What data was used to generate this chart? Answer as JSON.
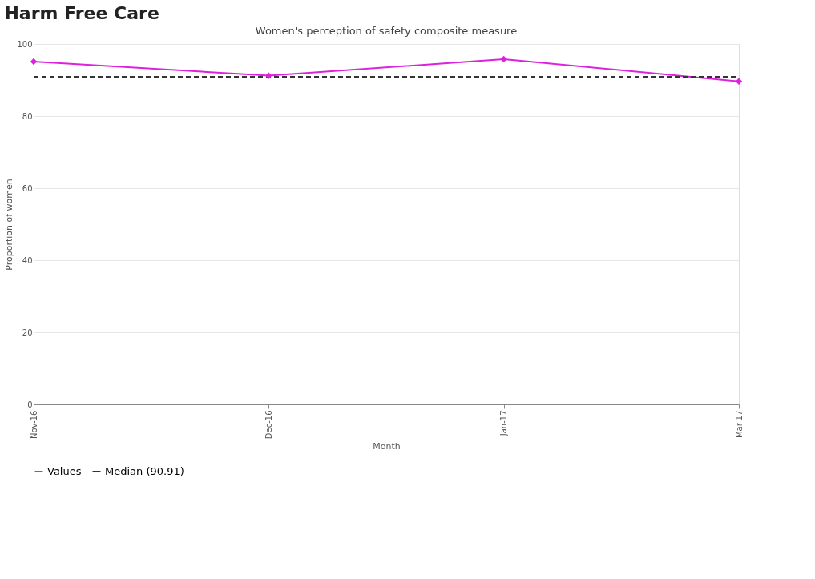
{
  "chart_data": {
    "type": "line",
    "title": "Harm Free Care",
    "subtitle": "Women's perception of safety composite measure",
    "xlabel": "Month",
    "ylabel": "Proportion of women",
    "categories": [
      "Nov-16",
      "Dec-16",
      "Jan-17",
      "Mar-17"
    ],
    "series": [
      {
        "name": "Values",
        "color": "#dd22dd",
        "values": [
          95.1,
          91.2,
          95.8,
          89.6
        ],
        "marker": "diamond",
        "line_style": "solid"
      },
      {
        "name": "Median (90.91)",
        "color": "#333333",
        "values": [
          90.91,
          90.91,
          90.91,
          90.91
        ],
        "marker": "none",
        "line_style": "dashed"
      }
    ],
    "ylim": [
      0,
      100
    ],
    "yticks": [
      0,
      20,
      40,
      60,
      80,
      100
    ],
    "grid": "y",
    "legend": "bottom"
  }
}
